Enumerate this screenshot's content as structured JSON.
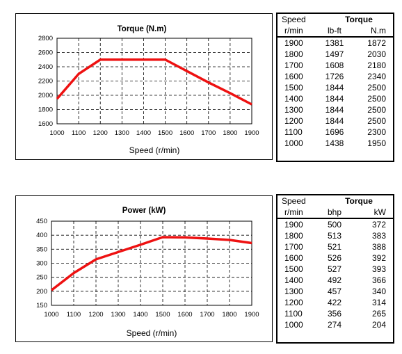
{
  "chart_data": [
    {
      "type": "line",
      "title": "Torque (N.m)",
      "xlabel": "Speed (r/min)",
      "ylabel": "",
      "x": [
        1000,
        1100,
        1200,
        1300,
        1400,
        1500,
        1600,
        1700,
        1800,
        1900
      ],
      "x_ticks": [
        "1000",
        "1100",
        "1200",
        "1300",
        "1400",
        "1500",
        "1600",
        "1700",
        "1800",
        "1900"
      ],
      "y_ticks": [
        "1600",
        "1800",
        "2000",
        "2200",
        "2400",
        "2600",
        "2800"
      ],
      "ylim": [
        1600,
        2800
      ],
      "xlim": [
        1000,
        1900
      ],
      "series": [
        {
          "values": [
            1950,
            2300,
            2500,
            2500,
            2500,
            2500,
            2340,
            2180,
            2030,
            1872
          ]
        }
      ],
      "grid": true,
      "color": "#ee1111"
    },
    {
      "type": "line",
      "title": "Power (kW)",
      "xlabel": "Speed (r/min)",
      "ylabel": "",
      "x": [
        1000,
        1100,
        1200,
        1300,
        1400,
        1500,
        1600,
        1700,
        1800,
        1900
      ],
      "x_ticks": [
        "1000",
        "1100",
        "1200",
        "1300",
        "1400",
        "1500",
        "1600",
        "1700",
        "1800",
        "1900"
      ],
      "y_ticks": [
        "150",
        "200",
        "250",
        "300",
        "350",
        "400",
        "450"
      ],
      "ylim": [
        150,
        450
      ],
      "xlim": [
        1000,
        1900
      ],
      "series": [
        {
          "values": [
            204,
            265,
            314,
            340,
            366,
            393,
            392,
            388,
            383,
            372
          ]
        }
      ],
      "grid": true,
      "color": "#ee1111"
    }
  ],
  "torque_table": {
    "col_speed": "Speed",
    "group_header": "Torque",
    "unit_speed": "r/min",
    "unit_a": "lb-ft",
    "unit_b": "N.m",
    "rows": [
      [
        "1900",
        "1381",
        "1872"
      ],
      [
        "1800",
        "1497",
        "2030"
      ],
      [
        "1700",
        "1608",
        "2180"
      ],
      [
        "1600",
        "1726",
        "2340"
      ],
      [
        "1500",
        "1844",
        "2500"
      ],
      [
        "1400",
        "1844",
        "2500"
      ],
      [
        "1300",
        "1844",
        "2500"
      ],
      [
        "1200",
        "1844",
        "2500"
      ],
      [
        "1100",
        "1696",
        "2300"
      ],
      [
        "1000",
        "1438",
        "1950"
      ]
    ]
  },
  "power_table": {
    "col_speed": "Speed",
    "group_header": "Torque",
    "unit_speed": "r/min",
    "unit_a": "bhp",
    "unit_b": "kW",
    "rows": [
      [
        "1900",
        "500",
        "372"
      ],
      [
        "1800",
        "513",
        "383"
      ],
      [
        "1700",
        "521",
        "388"
      ],
      [
        "1600",
        "526",
        "392"
      ],
      [
        "1500",
        "527",
        "393"
      ],
      [
        "1400",
        "492",
        "366"
      ],
      [
        "1300",
        "457",
        "340"
      ],
      [
        "1200",
        "422",
        "314"
      ],
      [
        "1100",
        "356",
        "265"
      ],
      [
        "1000",
        "274",
        "204"
      ]
    ]
  }
}
